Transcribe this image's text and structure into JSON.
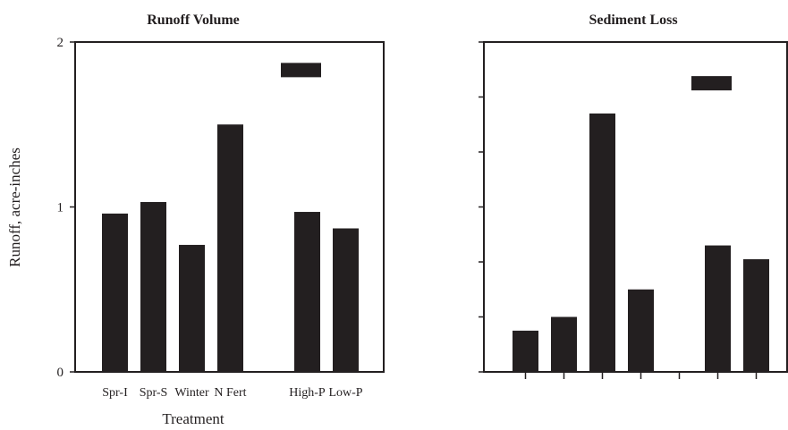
{
  "chart_data": [
    {
      "type": "bar",
      "title": "Runoff Volume",
      "xlabel": "Treatment",
      "ylabel": "Runoff, acre-inches",
      "ylim": [
        0,
        2
      ],
      "yticks": [
        "0",
        "1",
        "2"
      ],
      "categories": [
        "Spr-I",
        "Spr-S",
        "Winter",
        "N Fert",
        "",
        "High-P",
        "Low-P"
      ],
      "values": [
        0.96,
        1.03,
        0.77,
        1.5,
        null,
        0.97,
        0.87
      ],
      "marker_value": 1.83,
      "grid": false,
      "bar_color": "#231f20"
    },
    {
      "type": "bar",
      "title": "Sediment Loss",
      "xlabel": "",
      "ylabel": "",
      "ylim": [
        0,
        6
      ],
      "yticks": [
        "",
        "",
        "",
        "",
        "",
        "",
        ""
      ],
      "categories": [
        "",
        "",
        "",
        "",
        "",
        "",
        ""
      ],
      "values": [
        0.75,
        1.0,
        4.7,
        1.5,
        null,
        2.3,
        2.05
      ],
      "marker_value": 5.25,
      "grid": false,
      "bar_color": "#231f20"
    }
  ]
}
